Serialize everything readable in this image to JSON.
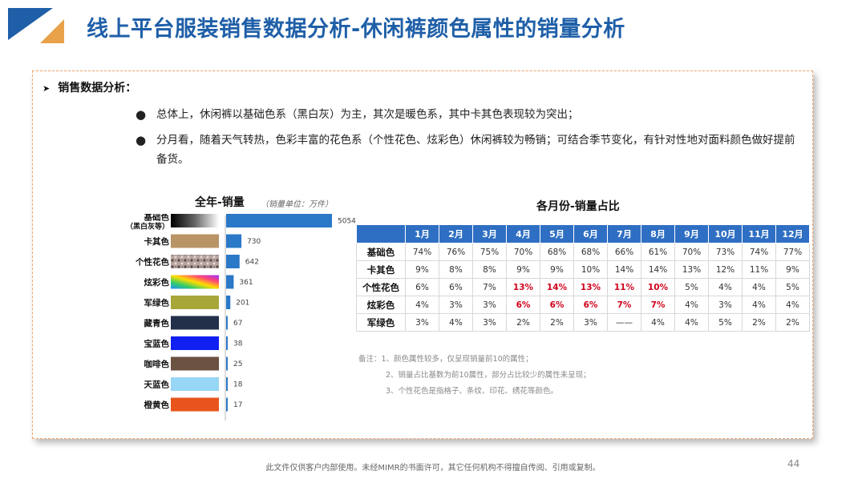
{
  "title": "线上平台服装销售数据分析-休闲裤颜色属性的销量分析",
  "section_title": "销售数据分析：",
  "bullets": [
    "总体上，休闲裤以基础色系（黑白灰）为主，其次是暖色系，其中卡其色表现较为突出；",
    "分月看，随着天气转热，色彩丰富的花色系（个性花色、炫彩色）休闲裤较为畅销；可结合季节变化，有针对性地对面料颜色做好提前备货。"
  ],
  "colors": {
    "title": "#1f5fa8",
    "bar": "#2a78c8",
    "table_header": "#2f6fc3",
    "highlight": "#d0021b",
    "logo_blue": "#1f5fa8",
    "logo_orange": "#e8a24a"
  },
  "chart_data": [
    {
      "type": "bar",
      "orientation": "horizontal",
      "title": "全年-销量",
      "unit_note": "（销量单位：万件）",
      "categories": [
        "基础色",
        "卡其色",
        "个性花色",
        "炫彩色",
        "军绿色",
        "藏青色",
        "宝蓝色",
        "咖啡色",
        "天蓝色",
        "橙黄色"
      ],
      "category_sub": [
        "（黑白灰等）",
        "",
        "",
        "",
        "",
        "",
        "",
        "",
        "",
        ""
      ],
      "swatch_icons": [
        "black-white-gradient-swatch",
        "khaki-swatch",
        "floral-pattern-swatch",
        "rainbow-swatch",
        "army-green-swatch",
        "navy-swatch",
        "royal-blue-swatch",
        "coffee-swatch",
        "sky-blue-swatch",
        "orange-swatch"
      ],
      "swatch_colors": [
        "#444444",
        "#b99466",
        "#9a8786",
        "#e04a7a",
        "#a7a73a",
        "#22304a",
        "#1020f0",
        "#6b5140",
        "#97d6f5",
        "#e8541c"
      ],
      "values": [
        5054,
        730,
        642,
        361,
        201,
        67,
        38,
        25,
        18,
        17
      ],
      "value_labels": [
        "5054",
        "730",
        "642",
        "361",
        "201",
        "67",
        "38",
        "25",
        "18",
        "17"
      ],
      "series_color": "#2a78c8"
    },
    {
      "type": "table",
      "title": "各月份-销量占比",
      "columns": [
        "1月",
        "2月",
        "3月",
        "4月",
        "5月",
        "6月",
        "7月",
        "8月",
        "9月",
        "10月",
        "11月",
        "12月"
      ],
      "rows": [
        {
          "label": "基础色",
          "values": [
            "74%",
            "76%",
            "75%",
            "70%",
            "68%",
            "68%",
            "66%",
            "61%",
            "70%",
            "73%",
            "74%",
            "77%"
          ],
          "highlight": []
        },
        {
          "label": "卡其色",
          "values": [
            "9%",
            "8%",
            "8%",
            "9%",
            "9%",
            "10%",
            "14%",
            "14%",
            "13%",
            "12%",
            "11%",
            "9%"
          ],
          "highlight": []
        },
        {
          "label": "个性花色",
          "values": [
            "6%",
            "6%",
            "7%",
            "13%",
            "14%",
            "13%",
            "11%",
            "10%",
            "5%",
            "4%",
            "4%",
            "5%"
          ],
          "highlight": [
            3,
            4,
            5,
            6,
            7
          ]
        },
        {
          "label": "炫彩色",
          "values": [
            "4%",
            "3%",
            "3%",
            "6%",
            "6%",
            "6%",
            "7%",
            "7%",
            "4%",
            "3%",
            "4%",
            "4%"
          ],
          "highlight": [
            3,
            4,
            5,
            6,
            7
          ]
        },
        {
          "label": "军绿色",
          "values": [
            "3%",
            "4%",
            "3%",
            "2%",
            "2%",
            "3%",
            "——",
            "4%",
            "4%",
            "5%",
            "2%",
            "2%"
          ],
          "highlight": []
        }
      ]
    }
  ],
  "notes": [
    "备注：1、颜色属性较多，仅呈现销量前10的属性；",
    "2、销量占比基数为前10属性，部分占比较少的属性未呈现；",
    "3、个性花色是指格子、条纹、印花、绣花等颜色。"
  ],
  "footer": "此文件仅供客户内部使用。未经MIMR的书面许可，其它任何机构不得擅自传阅、引用或复制。",
  "page_number": "44"
}
